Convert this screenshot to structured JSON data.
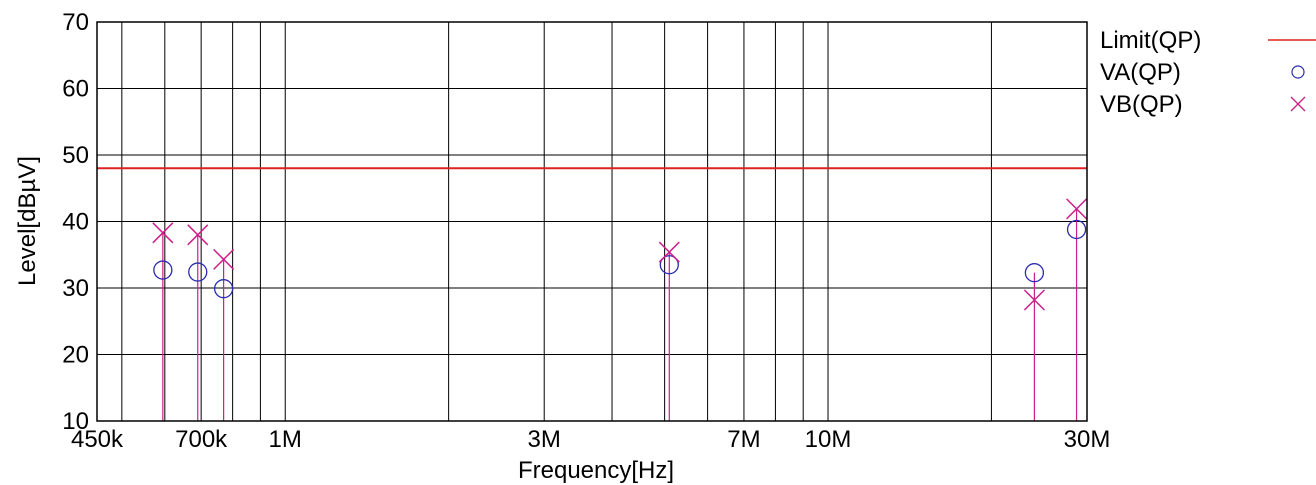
{
  "chart_data": {
    "type": "scatter",
    "xscale": "log",
    "xlabel": "Frequency[Hz]",
    "ylabel": "Level[dBµV]",
    "xlim": [
      450000,
      30000000
    ],
    "ylim": [
      10,
      70
    ],
    "grid": true,
    "legend_position": "right",
    "x_ticks": [
      {
        "value": 450000,
        "label": "450k"
      },
      {
        "value": 700000,
        "label": "700k"
      },
      {
        "value": 1000000,
        "label": "1M"
      },
      {
        "value": 3000000,
        "label": "3M"
      },
      {
        "value": 7000000,
        "label": "7M"
      },
      {
        "value": 10000000,
        "label": "10M"
      },
      {
        "value": 30000000,
        "label": "30M"
      }
    ],
    "y_ticks": [
      {
        "value": 10,
        "label": "10"
      },
      {
        "value": 20,
        "label": "20"
      },
      {
        "value": 30,
        "label": "30"
      },
      {
        "value": 40,
        "label": "40"
      },
      {
        "value": 50,
        "label": "50"
      },
      {
        "value": 60,
        "label": "60"
      },
      {
        "value": 70,
        "label": "70"
      }
    ],
    "series": [
      {
        "name": "Limit(QP)",
        "kind": "line",
        "color": "#dd2222",
        "points": [
          [
            450000,
            48
          ],
          [
            30000000,
            48
          ]
        ]
      },
      {
        "name": "VA(QP)",
        "kind": "marker-circle",
        "color": "#2b2bb0",
        "points": [
          [
            595000,
            32.7
          ],
          [
            690000,
            32.4
          ],
          [
            770000,
            29.9
          ],
          [
            5100000,
            33.5
          ],
          [
            24000000,
            32.3
          ],
          [
            28700000,
            38.8
          ]
        ]
      },
      {
        "name": "VB(QP)",
        "kind": "marker-x",
        "color": "#cc1f8a",
        "points": [
          [
            595000,
            38.3
          ],
          [
            690000,
            38.0
          ],
          [
            770000,
            34.3
          ],
          [
            5100000,
            35.4
          ],
          [
            24000000,
            28.2
          ],
          [
            28700000,
            41.9
          ]
        ]
      }
    ]
  }
}
